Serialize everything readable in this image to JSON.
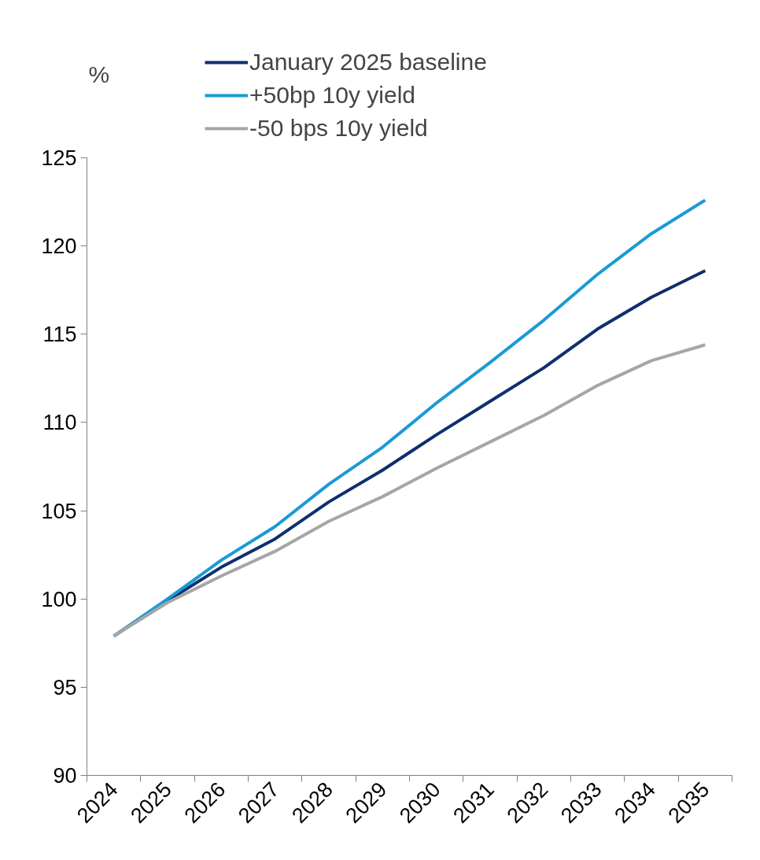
{
  "chart_data": {
    "type": "line",
    "ylabel": "%",
    "categories": [
      "2024",
      "2025",
      "2026",
      "2027",
      "2028",
      "2029",
      "2030",
      "2031",
      "2032",
      "2033",
      "2034",
      "2035"
    ],
    "series": [
      {
        "name": "January 2025 baseline",
        "color": "#0f2f6e",
        "values": [
          97.9,
          99.9,
          101.8,
          103.4,
          105.5,
          107.3,
          109.3,
          111.2,
          113.1,
          115.3,
          117.1,
          118.6
        ]
      },
      {
        "name": "+50bp 10y yield",
        "color": "#1a9ad6",
        "values": [
          97.9,
          100.0,
          102.2,
          104.1,
          106.5,
          108.6,
          111.1,
          113.4,
          115.8,
          118.4,
          120.7,
          122.6
        ]
      },
      {
        "name": "-50 bps 10y yield",
        "color": "#a6a6a6",
        "values": [
          97.9,
          99.8,
          101.3,
          102.7,
          104.4,
          105.8,
          107.4,
          108.9,
          110.4,
          112.1,
          113.5,
          114.4
        ]
      }
    ],
    "ylim": [
      90,
      125
    ],
    "yticks": [
      90,
      95,
      100,
      105,
      110,
      115,
      120,
      125
    ],
    "grid": false,
    "legend": "top",
    "marker": "none",
    "line_style": "solid"
  }
}
